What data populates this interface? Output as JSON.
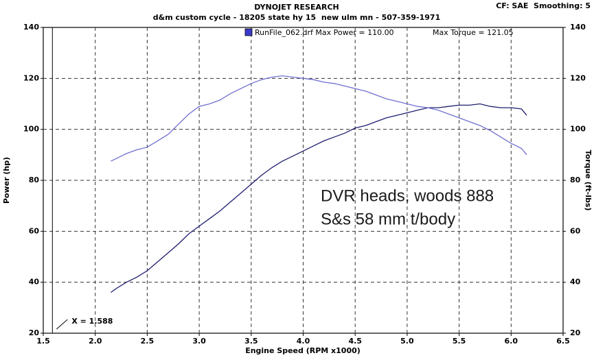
{
  "chart_data": {
    "type": "line",
    "title": "DYNOJET RESEARCH",
    "subtitle": "d&m custom cycle - 18205 state hy 15  new ulm mn - 507-359-1971",
    "settings_label": "CF: SAE  Smoothing: 5",
    "legend": {
      "label": "RunFile_062.drf Max Power = 110.00",
      "torque_label": "Max Torque = 121.05",
      "color": "#3a3acc"
    },
    "annotations": [
      "DVR heads, woods 888",
      "S&s 58 mm t/body"
    ],
    "cursor": {
      "value": 1.588,
      "label": "X = 1.588"
    },
    "x_label": "Engine Speed (RPM x1000)",
    "y_label": "Power (hp)",
    "y2_label": "Torque (ft-lbs)",
    "xlim": [
      1.5,
      6.5
    ],
    "xticks": [
      1.5,
      {
        "value": 2,
        "label": "2.0"
      },
      2.5,
      {
        "value": 3,
        "label": "3.0"
      },
      3.5,
      {
        "value": 4,
        "label": "4.0"
      },
      4.5,
      {
        "value": 5,
        "label": "5.0"
      },
      5.5,
      {
        "value": 6,
        "label": "6.0"
      },
      6.5
    ],
    "ylim": [
      20,
      140
    ],
    "yticks": [
      20,
      40,
      60,
      80,
      100,
      120,
      140
    ],
    "y2lim": [
      20,
      140
    ],
    "y2ticks": [
      20,
      40,
      60,
      80,
      100,
      120,
      140
    ],
    "grid": true,
    "x": [
      2.15,
      2.2,
      2.3,
      2.4,
      2.5,
      2.6,
      2.7,
      2.8,
      2.9,
      3.0,
      3.1,
      3.2,
      3.3,
      3.4,
      3.5,
      3.6,
      3.7,
      3.8,
      3.9,
      4.0,
      4.1,
      4.2,
      4.3,
      4.4,
      4.5,
      4.6,
      4.7,
      4.8,
      4.9,
      5.0,
      5.1,
      5.2,
      5.3,
      5.4,
      5.5,
      5.6,
      5.7,
      5.8,
      5.9,
      6.0,
      6.1,
      6.15
    ],
    "series": [
      {
        "color": "#1c1c6e",
        "values": [
          36,
          37.5,
          40,
          42,
          44.5,
          48,
          51.5,
          55,
          59,
          62,
          65,
          68,
          71.5,
          75,
          78.5,
          82,
          85,
          87.5,
          89.5,
          91.5,
          93.5,
          95.5,
          97,
          98.5,
          100.5,
          101.5,
          103,
          104.5,
          105.5,
          106.5,
          107.5,
          108.5,
          108.5,
          109,
          109.5,
          109.5,
          110,
          109,
          108.5,
          108.5,
          108,
          105.5
        ]
      },
      {
        "color": "#6f6fd0",
        "axis": "y2",
        "values": [
          87.5,
          88.5,
          90.5,
          92,
          93,
          95.5,
          98,
          102,
          106,
          109,
          110,
          111.5,
          114,
          116,
          118,
          119.5,
          120.5,
          121,
          120.5,
          120,
          119.5,
          118.5,
          118,
          117,
          116,
          115,
          113.5,
          112,
          111,
          110,
          109,
          108.5,
          107.5,
          106,
          104.5,
          103,
          101.5,
          99.5,
          97,
          94.5,
          92.5,
          90
        ]
      }
    ]
  }
}
